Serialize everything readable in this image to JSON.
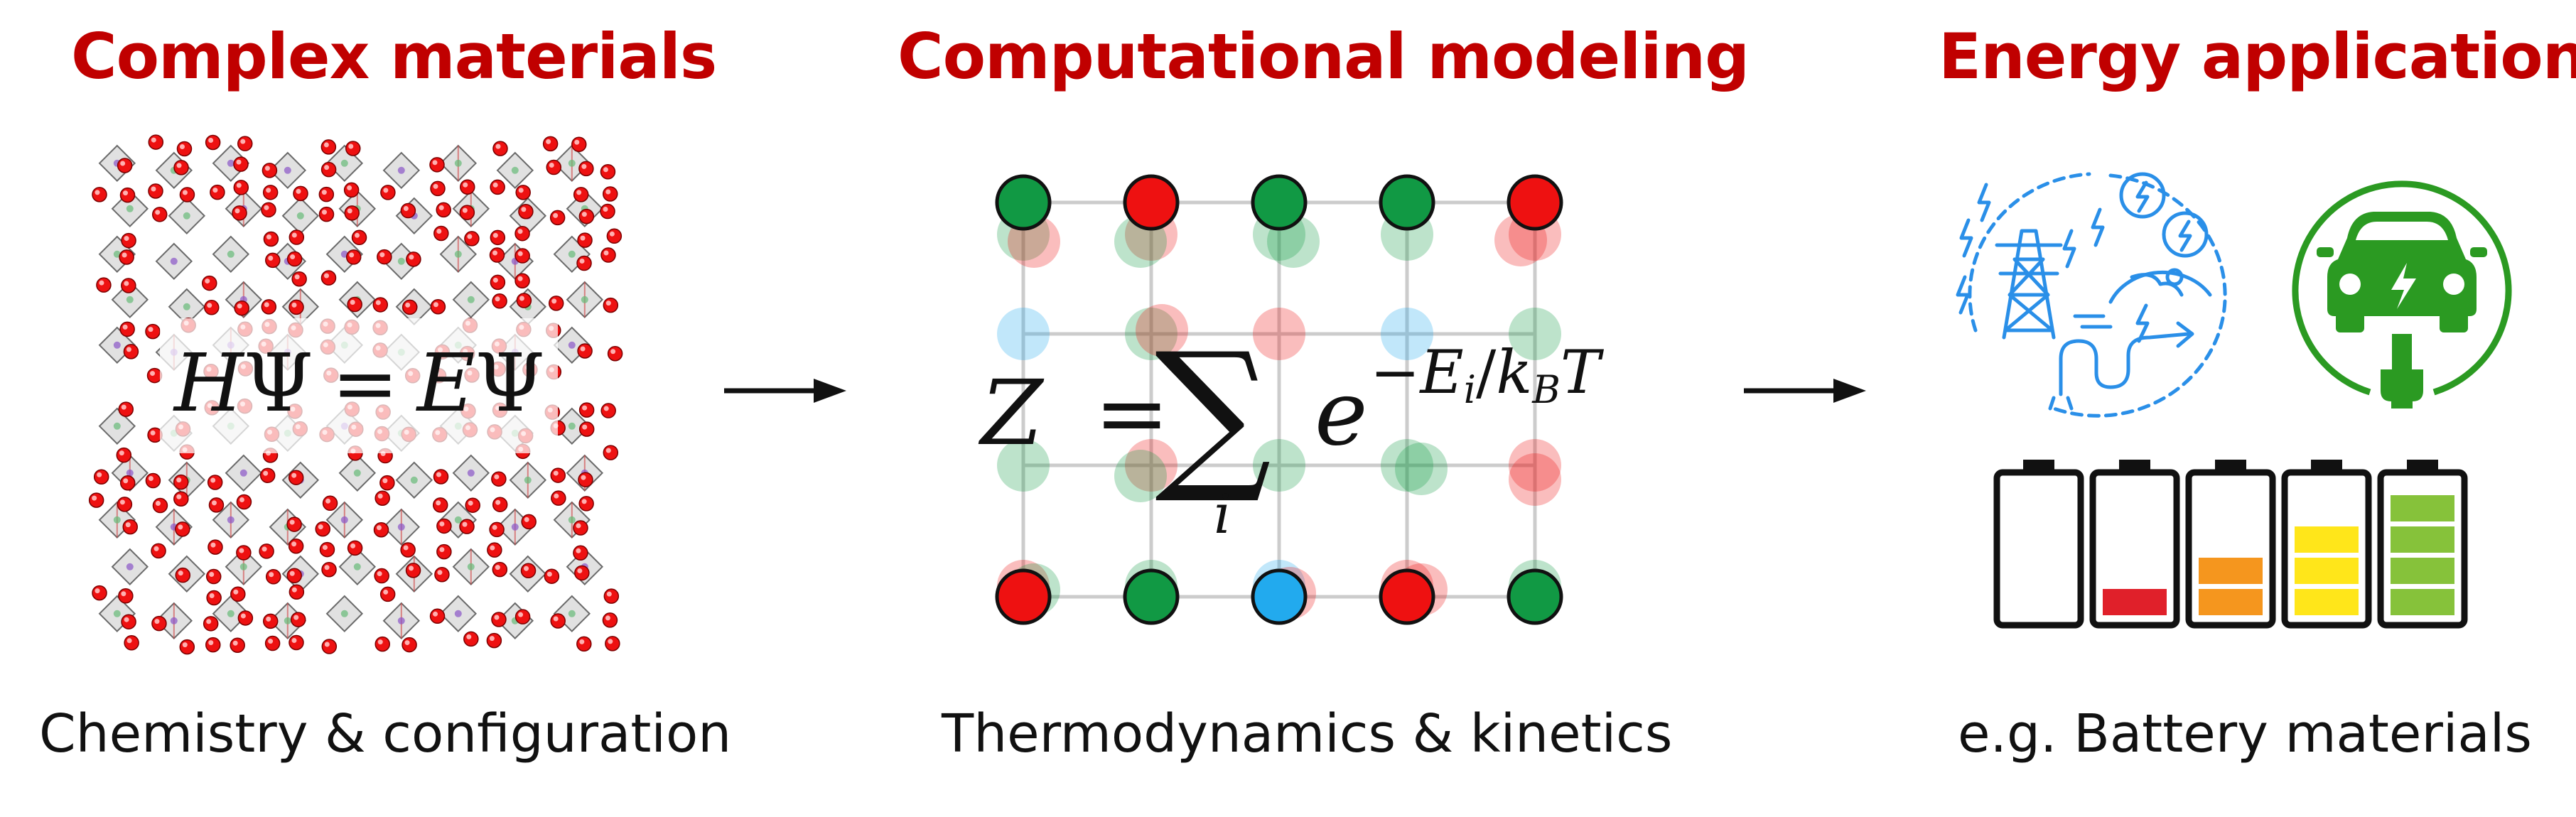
{
  "panels": {
    "left": {
      "title": "Complex materials",
      "caption": "Chemistry & configuration"
    },
    "middle": {
      "title": "Computational modeling",
      "caption": "Thermodynamics & kinetics"
    },
    "right": {
      "title": "Energy applications",
      "caption": "e.g. Battery materials"
    }
  },
  "equations": {
    "schrodinger": {
      "H": "H",
      "psi": "Ψ",
      "eq": "=",
      "E": "E",
      "psi2": "Ψ"
    },
    "partition": {
      "Z": "Z",
      "eq": "=",
      "sum": "∑",
      "index": "i",
      "base": "e",
      "exp_sign": "−",
      "exp_E": "E",
      "exp_Ei": "i",
      "slash": "/",
      "exp_k": "k",
      "exp_kB": "B",
      "exp_T": "T"
    }
  },
  "colors": {
    "heading": "#c00000",
    "atom_red": "#ee1111",
    "site_green": "#119944",
    "site_blue": "#22aaee",
    "app_blue": "#2a8fe8",
    "ev_green": "#2b9a22",
    "battery_red": "#e0202a",
    "battery_orange": "#f5961e",
    "battery_yellow": "#ffe61a",
    "battery_green": "#86c23a"
  },
  "icons": {
    "arrow1": "right-arrow-icon",
    "arrow2": "right-arrow-icon",
    "energy": "energy-grid-icon",
    "ev": "electric-car-icon"
  },
  "battery_levels": [
    0,
    1,
    2,
    3,
    4
  ]
}
